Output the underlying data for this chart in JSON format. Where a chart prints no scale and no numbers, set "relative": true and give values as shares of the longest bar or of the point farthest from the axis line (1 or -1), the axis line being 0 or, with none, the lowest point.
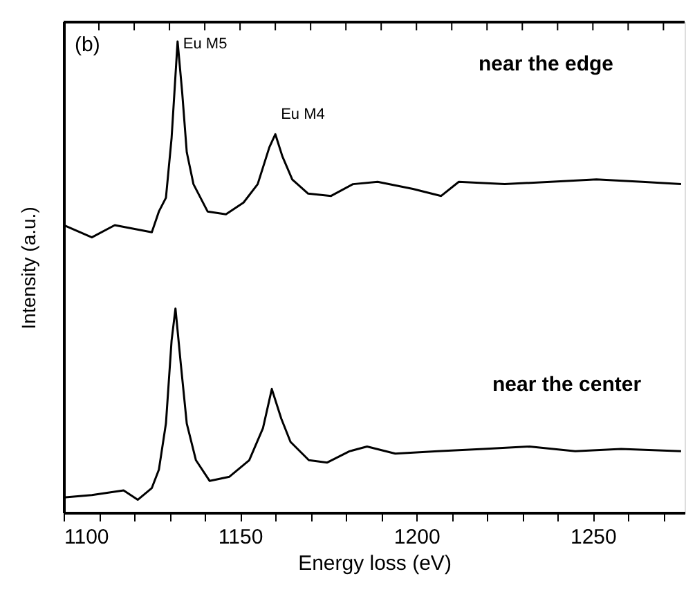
{
  "chart_data": {
    "type": "line",
    "relative": true,
    "xlabel": "Energy loss (eV)",
    "ylabel": "Intensity (a.u.)",
    "xlim": [
      1100,
      1276
    ],
    "xticks": [
      1100,
      {
        "value": 1110,
        "label": null
      },
      {
        "value": 1120,
        "label": null
      },
      {
        "value": 1130,
        "label": null
      },
      {
        "value": 1140,
        "label": null
      },
      1150,
      {
        "value": 1160,
        "label": null
      },
      {
        "value": 1170,
        "label": null
      },
      {
        "value": 1180,
        "label": null
      },
      {
        "value": 1190,
        "label": null
      },
      1200,
      {
        "value": 1210,
        "label": null
      },
      {
        "value": 1220,
        "label": null
      },
      {
        "value": 1230,
        "label": null
      },
      {
        "value": 1240,
        "label": null
      },
      1250,
      {
        "value": 1260,
        "label": null
      },
      {
        "value": 1270,
        "label": null
      }
    ],
    "grid": false,
    "marker": "none",
    "line_style": "solid",
    "annotations": [
      "(b)",
      {
        "text": "Eu M5",
        "x": 1132.3,
        "y": 1.0
      },
      {
        "text": "Eu M4",
        "x": 1160,
        "y": 0.803
      }
    ],
    "series": [
      {
        "name": "near the edge",
        "color": "#000000",
        "x": [
          1100,
          1108,
          1114.5,
          1125,
          1127,
          1129,
          1130.6,
          1132.3,
          1133.6,
          1134.9,
          1136.8,
          1140.8,
          1146,
          1151,
          1155,
          1158.3,
          1160,
          1162,
          1164.8,
          1169.3,
          1175.8,
          1182,
          1189,
          1199,
          1207,
          1212,
          1225,
          1238,
          1251,
          1264,
          1275
        ],
        "values": [
          0.61,
          0.584,
          0.61,
          0.595,
          0.639,
          0.668,
          0.795,
          1.0,
          0.892,
          0.765,
          0.697,
          0.639,
          0.633,
          0.658,
          0.697,
          0.775,
          0.803,
          0.756,
          0.707,
          0.677,
          0.672,
          0.697,
          0.702,
          0.687,
          0.672,
          0.702,
          0.697,
          0.702,
          0.707,
          0.702,
          0.697
        ]
      },
      {
        "name": "near the center",
        "color": "#000000",
        "x": [
          1100,
          1108,
          1117,
          1121,
          1125,
          1127,
          1129,
          1130.6,
          1131.7,
          1133.2,
          1134.9,
          1137.5,
          1141.4,
          1147,
          1152.6,
          1156.5,
          1159,
          1161.7,
          1164.3,
          1169.5,
          1174.7,
          1181,
          1186,
          1194,
          1206,
          1219,
          1232,
          1245,
          1258,
          1275
        ],
        "values": [
          0.032,
          0.037,
          0.047,
          0.027,
          0.052,
          0.091,
          0.189,
          0.365,
          0.433,
          0.316,
          0.189,
          0.111,
          0.067,
          0.076,
          0.111,
          0.179,
          0.262,
          0.199,
          0.15,
          0.111,
          0.106,
          0.13,
          0.14,
          0.125,
          0.13,
          0.135,
          0.14,
          0.13,
          0.135,
          0.13
        ]
      }
    ]
  }
}
